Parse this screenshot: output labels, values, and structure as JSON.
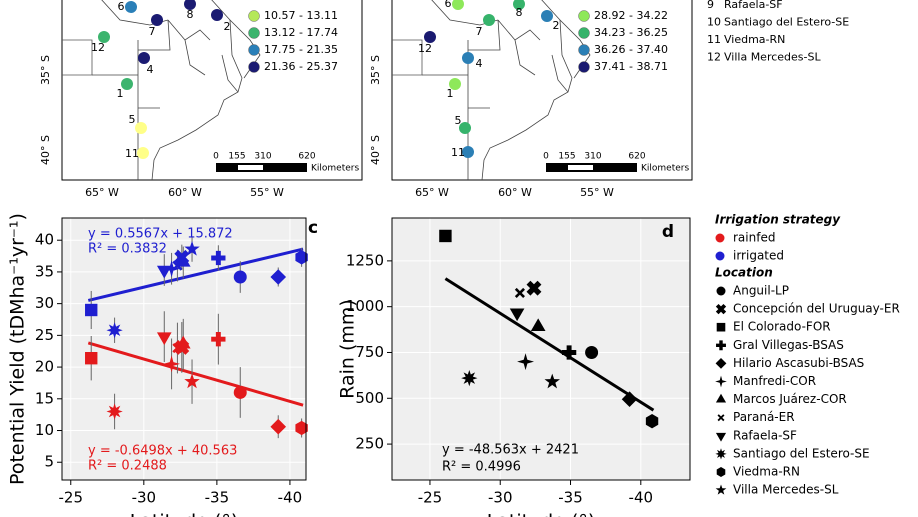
{
  "maps": [
    {
      "legend": [
        {
          "label": "10.57 - 13.11",
          "color": "#b5e85a"
        },
        {
          "label": "13.12 - 17.74",
          "color": "#3cb46e"
        },
        {
          "label": "17.75 - 21.35",
          "color": "#2a7fb8"
        },
        {
          "label": "21.36 - 25.37",
          "color": "#1b1b72"
        }
      ],
      "points": [
        {
          "label": "6",
          "color": "#2a7fb8"
        },
        {
          "label": "7",
          "color": "#1b1b72"
        },
        {
          "label": "8",
          "color": "#1b1b72"
        },
        {
          "label": "2",
          "color": "#1b1b72"
        },
        {
          "label": "12",
          "color": "#3cb46e"
        },
        {
          "label": "4",
          "color": "#1b1b72"
        },
        {
          "label": "1",
          "color": "#3cb46e"
        },
        {
          "label": "5",
          "color": "#ffff88"
        },
        {
          "label": "11",
          "color": "#ffff88"
        }
      ],
      "lat_labels": [
        "35° S",
        "40° S"
      ],
      "lon_labels": [
        "65° W",
        "60° W",
        "55° W"
      ],
      "scale": {
        "ticks": [
          "0",
          "155",
          "310",
          "620"
        ],
        "unit": "Kilometers"
      }
    },
    {
      "legend": [
        {
          "label": "28.92 - 34.22",
          "color": "#8ee85a"
        },
        {
          "label": "34.23 - 36.25",
          "color": "#36b36b"
        },
        {
          "label": "36.26 - 37.40",
          "color": "#2b7fb5"
        },
        {
          "label": "37.41 - 38.71",
          "color": "#1a1a70"
        }
      ],
      "points": [
        {
          "label": "6",
          "color": "#8ee85a"
        },
        {
          "label": "7",
          "color": "#36b36b"
        },
        {
          "label": "8",
          "color": "#36b36b"
        },
        {
          "label": "2",
          "color": "#2b7fb5"
        },
        {
          "label": "12",
          "color": "#1a1a70"
        },
        {
          "label": "4",
          "color": "#2b7fb5"
        },
        {
          "label": "1",
          "color": "#8ee85a"
        },
        {
          "label": "5",
          "color": "#36b36b"
        },
        {
          "label": "11",
          "color": "#2b7fb5"
        }
      ],
      "lat_labels": [
        "35° S",
        "40° S"
      ],
      "lon_labels": [
        "65° W",
        "60° W",
        "55° W"
      ],
      "scale": {
        "ticks": [
          "0",
          "155",
          "310",
          "620"
        ],
        "unit": "Kilometers"
      }
    }
  ],
  "site_list": [
    {
      "num": "9",
      "name": "Rafaela-SF"
    },
    {
      "num": "10",
      "name": "Santiago del Estero-SE"
    },
    {
      "num": "11",
      "name": "Viedma-RN"
    },
    {
      "num": "12",
      "name": "Villa Mercedes-SL"
    }
  ],
  "strategy_title": "Irrigation strategy",
  "locations": {
    "title": "Location",
    "names": [
      "Anguil-LP",
      "Concepción del Uruguay-ER",
      "El Colorado-FOR",
      "Gral Villegas-BSAS",
      "Hilario Ascasubi-BSAS",
      "Manfredi-COR",
      "Marcos Juárez-COR",
      "Paraná-ER",
      "Rafaela-SF",
      "Santiago del Estero-SE",
      "Viedma-RN",
      "Villa Mercedes-SL"
    ],
    "markers": [
      "circle",
      "x-thick",
      "square",
      "plus",
      "diamond",
      "star4",
      "triangle",
      "x-thin",
      "triangle-down",
      "star8",
      "hexagon",
      "star5"
    ]
  },
  "chart_data": [
    {
      "type": "scatter",
      "panel_label": "c",
      "x_label": "Latitude (°)",
      "y_label": "Potential Yield (tDMha⁻¹yr⁻¹)",
      "xlim": [
        -24.4,
        -41.1
      ],
      "xticks": [
        -25,
        -30,
        -35,
        -40
      ],
      "ylim": [
        2.2,
        43.5
      ],
      "yticks": [
        5,
        10,
        15,
        20,
        25,
        30,
        35,
        40
      ],
      "grid": true,
      "series": [
        {
          "name": "rainfed",
          "color": "#e31a1c",
          "x": [
            -36.6,
            -32.6,
            -26.4,
            -35.1,
            -39.2,
            -31.9,
            -32.7,
            -32.3,
            -31.4,
            -28.0,
            -40.8,
            -33.3
          ],
          "values": [
            16.0,
            23.1,
            21.4,
            24.4,
            10.6,
            20.5,
            23.6,
            23.0,
            24.8,
            13.0,
            10.4,
            17.7
          ],
          "errors": [
            4.0,
            4.0,
            3.5,
            4.0,
            1.8,
            4.0,
            4.0,
            4.0,
            4.0,
            2.8,
            1.5,
            3.5
          ],
          "trend": {
            "x": [
              -26.2,
              -40.9
            ],
            "y": [
              23.8,
              14.0
            ]
          },
          "equation": "y = -0.6498x + 40.563",
          "r2": "R² = 0.2488"
        },
        {
          "name": "irrigated",
          "color": "#1f1fd0",
          "x": [
            -36.6,
            -32.6,
            -26.4,
            -35.1,
            -39.2,
            -31.9,
            -32.7,
            -32.3,
            -31.4,
            -28.0,
            -40.8,
            -33.3
          ],
          "values": [
            34.2,
            37.3,
            29.0,
            37.2,
            34.2,
            35.5,
            36.5,
            36.0,
            35.3,
            25.8,
            37.3,
            38.6
          ],
          "errors": [
            2.5,
            2.0,
            3.0,
            2.0,
            1.5,
            2.5,
            2.5,
            2.5,
            2.5,
            2.0,
            1.5,
            2.0
          ],
          "trend": {
            "x": [
              -26.2,
              -40.9
            ],
            "y": [
              30.5,
              38.6
            ]
          },
          "equation": "y = 0.5567x + 15.872",
          "r2": "R² = 0.3832"
        }
      ]
    },
    {
      "type": "scatter",
      "panel_label": "d",
      "x_label": "Latitude (°)",
      "y_label": "Rain (mm)",
      "xlim": [
        -22.3,
        -43.5
      ],
      "xticks": [
        -25,
        -30,
        -35,
        -40
      ],
      "ylim": [
        54,
        1484
      ],
      "yticks": [
        250,
        500,
        750,
        1000,
        1250
      ],
      "grid": true,
      "series": [
        {
          "color": "#000000",
          "x": [
            -36.5,
            -32.4,
            -26.1,
            -34.9,
            -39.2,
            -31.8,
            -32.7,
            -31.4,
            -31.2,
            -27.8,
            -40.8,
            -33.7
          ],
          "values": [
            750,
            1101,
            1386,
            750,
            495,
            700,
            890,
            1075,
            967,
            610,
            375,
            590
          ],
          "trend": {
            "x": [
              -26.1,
              -40.9
            ],
            "y": [
              1153,
              435
            ]
          },
          "equation": "y = -48.563x + 2421",
          "r2": "R² = 0.4996"
        }
      ]
    }
  ]
}
